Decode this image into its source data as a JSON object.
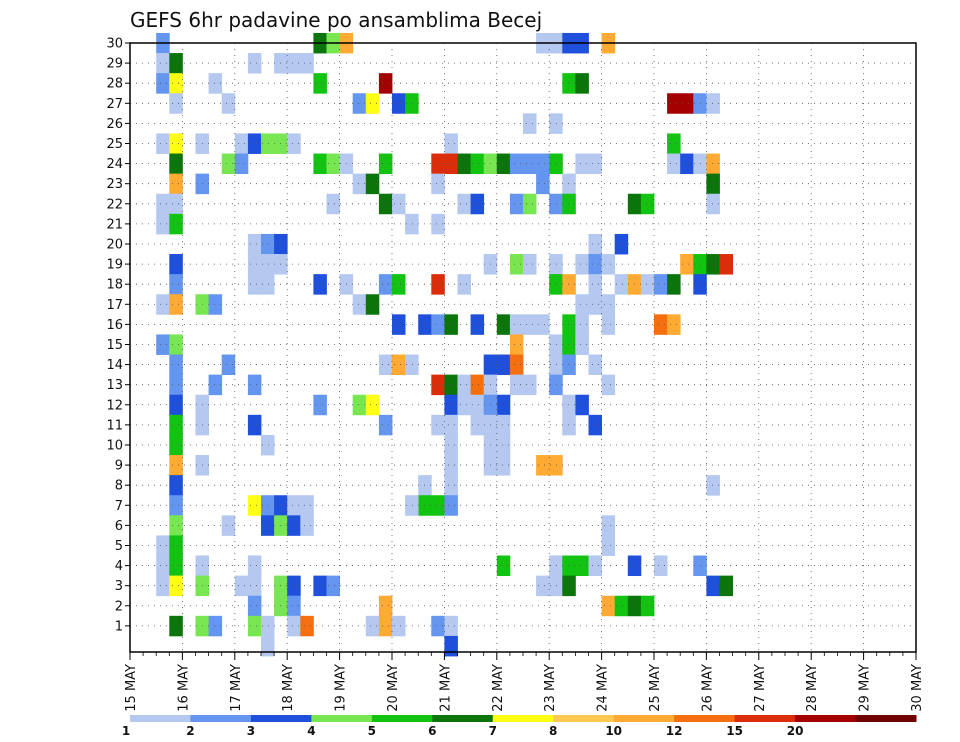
{
  "chart_data": {
    "type": "heatmap",
    "title": "GEFS 6hr padavine po ansamblima Becej",
    "xlabel": "",
    "ylabel": "",
    "y_ticks": [
      "1",
      "2",
      "3",
      "4",
      "5",
      "6",
      "7",
      "8",
      "9",
      "10",
      "11",
      "12",
      "13",
      "14",
      "15",
      "16",
      "17",
      "18",
      "19",
      "20",
      "21",
      "22",
      "23",
      "24",
      "25",
      "26",
      "27",
      "28",
      "29",
      "30"
    ],
    "x_ticks": [
      "15 MAY",
      "16 MAY",
      "17 MAY",
      "18 MAY",
      "19 MAY",
      "20 MAY",
      "21 MAY",
      "22 MAY",
      "23 MAY",
      "24 MAY",
      "25 MAY",
      "26 MAY",
      "27 MAY",
      "28 MAY",
      "29 MAY",
      "30 MAY"
    ],
    "x_range": [
      "15 MAY 00Z",
      "30 MAY 00Z"
    ],
    "y_range": [
      0,
      30
    ],
    "time_step_hours": 6,
    "grid": true,
    "legend_position": "bottom",
    "levels": [
      "1",
      "2",
      "3",
      "4",
      "5",
      "6",
      "7",
      "8",
      "10",
      "12",
      "15",
      "20"
    ],
    "colors": [
      "#b4c8f0",
      "#6496f0",
      "#1e50dc",
      "#78e650",
      "#12c312",
      "#0b750b",
      "#ffff14",
      "#ffc850",
      "#ffaa32",
      "#f56e0f",
      "#dc2d0a",
      "#a50000",
      "#700000"
    ],
    "cells_format": "[member, step, color_index]",
    "cells": [
      [
        30,
        2,
        1
      ],
      [
        29,
        2,
        0
      ],
      [
        29,
        3,
        5
      ],
      [
        28,
        2,
        1
      ],
      [
        28,
        3,
        6
      ],
      [
        27,
        3,
        0
      ],
      [
        25,
        2,
        0
      ],
      [
        25,
        3,
        6
      ],
      [
        24,
        3,
        5
      ],
      [
        23,
        3,
        8
      ],
      [
        22,
        2,
        0
      ],
      [
        22,
        3,
        0
      ],
      [
        21,
        2,
        0
      ],
      [
        21,
        3,
        4
      ],
      [
        19,
        3,
        2
      ],
      [
        18,
        3,
        1
      ],
      [
        17,
        2,
        0
      ],
      [
        17,
        3,
        8
      ],
      [
        15,
        2,
        1
      ],
      [
        15,
        3,
        3
      ],
      [
        14,
        3,
        1
      ],
      [
        13,
        3,
        1
      ],
      [
        12,
        3,
        2
      ],
      [
        11,
        3,
        4
      ],
      [
        10,
        3,
        4
      ],
      [
        9,
        3,
        8
      ],
      [
        8,
        3,
        2
      ],
      [
        7,
        3,
        1
      ],
      [
        6,
        3,
        3
      ],
      [
        5,
        2,
        0
      ],
      [
        5,
        3,
        4
      ],
      [
        4,
        2,
        0
      ],
      [
        4,
        3,
        4
      ],
      [
        3,
        2,
        0
      ],
      [
        3,
        3,
        6
      ],
      [
        1,
        3,
        5
      ],
      [
        30,
        14,
        5
      ],
      [
        30,
        15,
        3
      ],
      [
        30,
        16,
        8
      ],
      [
        29,
        9,
        0
      ],
      [
        29,
        11,
        0
      ],
      [
        29,
        12,
        0
      ],
      [
        29,
        13,
        0
      ],
      [
        28,
        6,
        0
      ],
      [
        28,
        14,
        4
      ],
      [
        27,
        7,
        0
      ],
      [
        25,
        5,
        0
      ],
      [
        25,
        8,
        0
      ],
      [
        25,
        9,
        2
      ],
      [
        25,
        10,
        3
      ],
      [
        25,
        11,
        3
      ],
      [
        25,
        12,
        0
      ],
      [
        24,
        7,
        3
      ],
      [
        24,
        8,
        1
      ],
      [
        24,
        14,
        4
      ],
      [
        24,
        15,
        3
      ],
      [
        24,
        16,
        0
      ],
      [
        23,
        5,
        1
      ],
      [
        22,
        15,
        0
      ],
      [
        20,
        9,
        0
      ],
      [
        20,
        10,
        1
      ],
      [
        20,
        11,
        2
      ],
      [
        19,
        9,
        0
      ],
      [
        19,
        10,
        0
      ],
      [
        19,
        11,
        0
      ],
      [
        18,
        9,
        0
      ],
      [
        18,
        10,
        0
      ],
      [
        18,
        14,
        2
      ],
      [
        18,
        16,
        0
      ],
      [
        17,
        5,
        3
      ],
      [
        17,
        6,
        1
      ],
      [
        14,
        7,
        1
      ],
      [
        13,
        6,
        1
      ],
      [
        13,
        9,
        1
      ],
      [
        12,
        5,
        0
      ],
      [
        12,
        14,
        1
      ],
      [
        11,
        5,
        0
      ],
      [
        11,
        9,
        2
      ],
      [
        10,
        10,
        0
      ],
      [
        9,
        5,
        0
      ],
      [
        7,
        9,
        6
      ],
      [
        7,
        10,
        1
      ],
      [
        7,
        11,
        2
      ],
      [
        7,
        12,
        0
      ],
      [
        7,
        13,
        0
      ],
      [
        6,
        7,
        0
      ],
      [
        6,
        10,
        2
      ],
      [
        6,
        11,
        3
      ],
      [
        6,
        12,
        2
      ],
      [
        6,
        13,
        0
      ],
      [
        4,
        5,
        0
      ],
      [
        4,
        9,
        0
      ],
      [
        3,
        5,
        3
      ],
      [
        3,
        8,
        0
      ],
      [
        3,
        9,
        0
      ],
      [
        3,
        11,
        3
      ],
      [
        3,
        12,
        2
      ],
      [
        3,
        14,
        2
      ],
      [
        3,
        15,
        1
      ],
      [
        2,
        9,
        1
      ],
      [
        2,
        11,
        3
      ],
      [
        2,
        12,
        1
      ],
      [
        1,
        5,
        3
      ],
      [
        1,
        6,
        1
      ],
      [
        1,
        9,
        3
      ],
      [
        1,
        10,
        0
      ],
      [
        1,
        12,
        0
      ],
      [
        1,
        13,
        9
      ],
      [
        0,
        10,
        0
      ],
      [
        28,
        19,
        11
      ],
      [
        27,
        17,
        1
      ],
      [
        27,
        18,
        6
      ],
      [
        27,
        20,
        2
      ],
      [
        27,
        21,
        4
      ],
      [
        26,
        30,
        0
      ],
      [
        25,
        24,
        0
      ],
      [
        24,
        19,
        4
      ],
      [
        24,
        23,
        10
      ],
      [
        24,
        24,
        10
      ],
      [
        24,
        25,
        5
      ],
      [
        24,
        26,
        4
      ],
      [
        24,
        27,
        3
      ],
      [
        24,
        28,
        5
      ],
      [
        24,
        29,
        1
      ],
      [
        24,
        30,
        1
      ],
      [
        24,
        31,
        1
      ],
      [
        24,
        32,
        3
      ],
      [
        23,
        23,
        0
      ],
      [
        23,
        17,
        0
      ],
      [
        23,
        18,
        5
      ],
      [
        22,
        19,
        5
      ],
      [
        22,
        20,
        0
      ],
      [
        22,
        25,
        0
      ],
      [
        22,
        26,
        2
      ],
      [
        22,
        29,
        1
      ],
      [
        22,
        30,
        3
      ],
      [
        21,
        21,
        0
      ],
      [
        21,
        23,
        0
      ],
      [
        19,
        27,
        0
      ],
      [
        19,
        29,
        3
      ],
      [
        19,
        30,
        5
      ],
      [
        18,
        19,
        1
      ],
      [
        18,
        20,
        4
      ],
      [
        18,
        23,
        10
      ],
      [
        18,
        25,
        0
      ],
      [
        17,
        17,
        0
      ],
      [
        17,
        18,
        5
      ],
      [
        16,
        20,
        2
      ],
      [
        16,
        22,
        2
      ],
      [
        16,
        23,
        1
      ],
      [
        16,
        24,
        5
      ],
      [
        16,
        26,
        2
      ],
      [
        16,
        28,
        5
      ],
      [
        16,
        29,
        0
      ],
      [
        16,
        30,
        0
      ],
      [
        15,
        29,
        8
      ],
      [
        14,
        19,
        0
      ],
      [
        14,
        20,
        8
      ],
      [
        14,
        21,
        0
      ],
      [
        14,
        27,
        2
      ],
      [
        14,
        28,
        2
      ],
      [
        14,
        29,
        9
      ],
      [
        13,
        23,
        10
      ],
      [
        13,
        24,
        5
      ],
      [
        13,
        25,
        0
      ],
      [
        13,
        26,
        9
      ],
      [
        13,
        27,
        0
      ],
      [
        13,
        29,
        0
      ],
      [
        13,
        30,
        0
      ],
      [
        12,
        17,
        3
      ],
      [
        12,
        18,
        6
      ],
      [
        12,
        24,
        2
      ],
      [
        12,
        25,
        0
      ],
      [
        12,
        26,
        0
      ],
      [
        12,
        28,
        2
      ],
      [
        12,
        27,
        1
      ],
      [
        11,
        23,
        0
      ],
      [
        11,
        24,
        0
      ],
      [
        11,
        19,
        1
      ],
      [
        11,
        26,
        0
      ],
      [
        11,
        27,
        0
      ],
      [
        11,
        28,
        0
      ],
      [
        10,
        24,
        0
      ],
      [
        10,
        27,
        0
      ],
      [
        10,
        28,
        0
      ],
      [
        9,
        24,
        0
      ],
      [
        9,
        27,
        0
      ],
      [
        9,
        28,
        0
      ],
      [
        8,
        22,
        0
      ],
      [
        8,
        24,
        0
      ],
      [
        7,
        22,
        4
      ],
      [
        7,
        23,
        4
      ],
      [
        7,
        21,
        0
      ],
      [
        7,
        24,
        1
      ],
      [
        4,
        28,
        4
      ],
      [
        2,
        19,
        8
      ],
      [
        1,
        18,
        0
      ],
      [
        1,
        19,
        8
      ],
      [
        1,
        20,
        0
      ],
      [
        1,
        23,
        1
      ],
      [
        1,
        24,
        0
      ],
      [
        0,
        24,
        2
      ],
      [
        30,
        31,
        0
      ],
      [
        30,
        32,
        0
      ],
      [
        30,
        33,
        2
      ],
      [
        30,
        34,
        2
      ],
      [
        30,
        36,
        8
      ],
      [
        28,
        33,
        4
      ],
      [
        28,
        34,
        5
      ],
      [
        27,
        41,
        11
      ],
      [
        27,
        42,
        11
      ],
      [
        27,
        43,
        1
      ],
      [
        27,
        44,
        0
      ],
      [
        26,
        32,
        0
      ],
      [
        25,
        41,
        4
      ],
      [
        24,
        32,
        4
      ],
      [
        24,
        34,
        0
      ],
      [
        24,
        35,
        0
      ],
      [
        24,
        41,
        0
      ],
      [
        24,
        42,
        2
      ],
      [
        24,
        43,
        0
      ],
      [
        24,
        44,
        8
      ],
      [
        23,
        31,
        1
      ],
      [
        23,
        33,
        0
      ],
      [
        23,
        44,
        5
      ],
      [
        22,
        32,
        1
      ],
      [
        22,
        33,
        4
      ],
      [
        22,
        38,
        5
      ],
      [
        22,
        39,
        4
      ],
      [
        22,
        44,
        0
      ],
      [
        20,
        35,
        0
      ],
      [
        20,
        37,
        2
      ],
      [
        19,
        30,
        0
      ],
      [
        19,
        32,
        0
      ],
      [
        19,
        34,
        0
      ],
      [
        19,
        35,
        1
      ],
      [
        19,
        36,
        0
      ],
      [
        19,
        42,
        8
      ],
      [
        19,
        43,
        4
      ],
      [
        19,
        44,
        5
      ],
      [
        19,
        45,
        10
      ],
      [
        18,
        32,
        4
      ],
      [
        18,
        33,
        8
      ],
      [
        18,
        35,
        0
      ],
      [
        18,
        37,
        0
      ],
      [
        18,
        38,
        8
      ],
      [
        18,
        39,
        0
      ],
      [
        18,
        40,
        1
      ],
      [
        18,
        41,
        5
      ],
      [
        18,
        43,
        2
      ],
      [
        17,
        35,
        0
      ],
      [
        17,
        36,
        0
      ],
      [
        17,
        34,
        0
      ],
      [
        16,
        31,
        0
      ],
      [
        16,
        33,
        4
      ],
      [
        16,
        34,
        0
      ],
      [
        16,
        36,
        0
      ],
      [
        16,
        40,
        9
      ],
      [
        16,
        41,
        8
      ],
      [
        15,
        32,
        0
      ],
      [
        15,
        33,
        4
      ],
      [
        15,
        34,
        0
      ],
      [
        15,
        34,
        0
      ],
      [
        14,
        32,
        0
      ],
      [
        14,
        33,
        1
      ],
      [
        14,
        35,
        0
      ],
      [
        13,
        32,
        1
      ],
      [
        13,
        36,
        0
      ],
      [
        12,
        33,
        0
      ],
      [
        12,
        34,
        2
      ],
      [
        11,
        33,
        0
      ],
      [
        11,
        35,
        2
      ],
      [
        9,
        31,
        8
      ],
      [
        9,
        32,
        8
      ],
      [
        8,
        44,
        0
      ],
      [
        6,
        36,
        0
      ],
      [
        5,
        36,
        0
      ],
      [
        4,
        32,
        0
      ],
      [
        4,
        33,
        4
      ],
      [
        4,
        34,
        4
      ],
      [
        4,
        35,
        0
      ],
      [
        4,
        38,
        2
      ],
      [
        4,
        40,
        0
      ],
      [
        4,
        43,
        1
      ],
      [
        3,
        31,
        0
      ],
      [
        3,
        32,
        0
      ],
      [
        3,
        33,
        5
      ],
      [
        3,
        44,
        2
      ],
      [
        3,
        45,
        5
      ],
      [
        2,
        36,
        8
      ],
      [
        2,
        37,
        4
      ],
      [
        2,
        38,
        5
      ],
      [
        2,
        39,
        4
      ]
    ]
  }
}
